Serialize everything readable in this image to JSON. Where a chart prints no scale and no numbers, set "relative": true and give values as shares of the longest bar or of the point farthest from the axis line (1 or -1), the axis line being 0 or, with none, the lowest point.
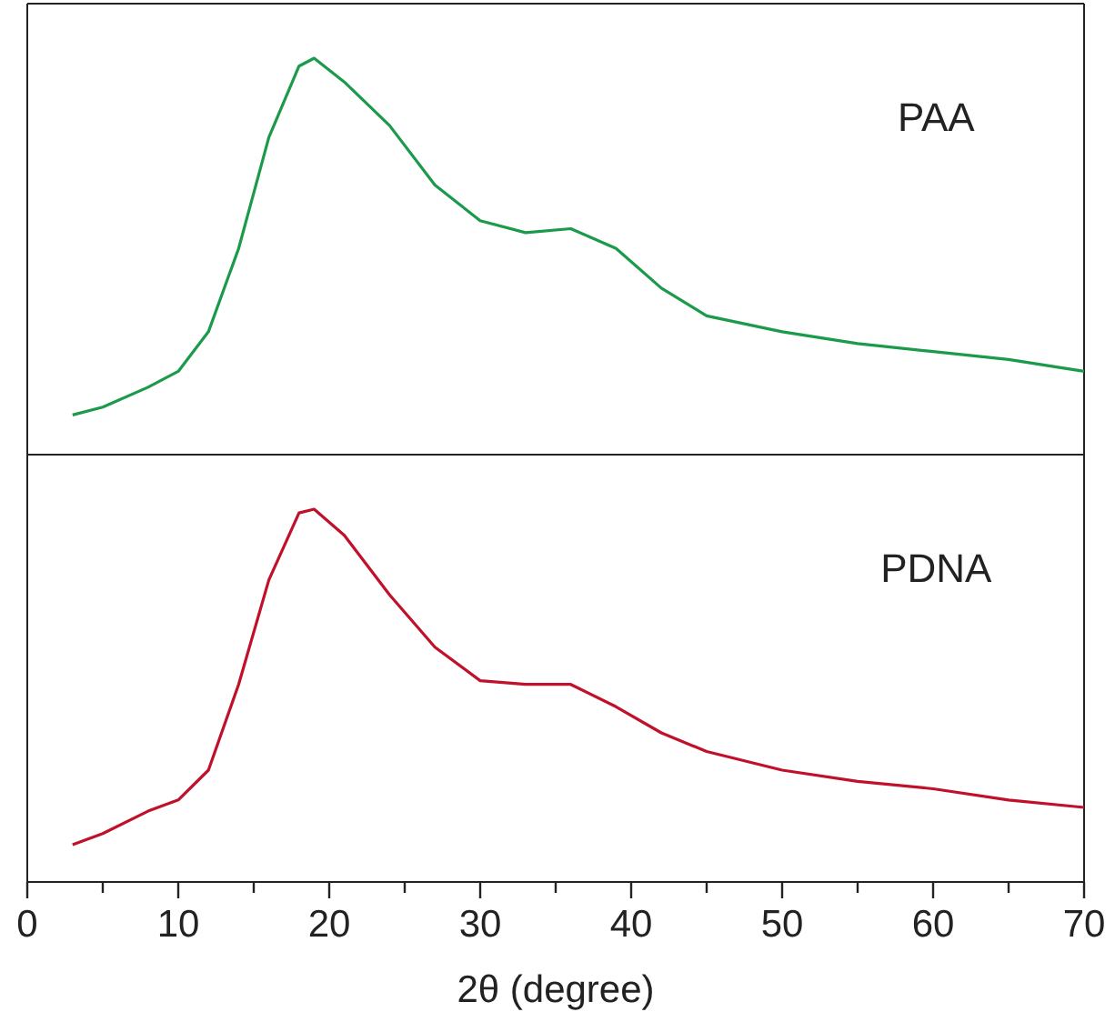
{
  "chart_data": [
    {
      "type": "line",
      "relative": true,
      "xlim": [
        0,
        70
      ],
      "tick_labels": false,
      "x": [
        3,
        5,
        8,
        10,
        12,
        14,
        16,
        18,
        19,
        21,
        24,
        27,
        30,
        33,
        36,
        39,
        42,
        45,
        50,
        55,
        60,
        65,
        70
      ],
      "series": [
        {
          "name": "PAA",
          "color": "#1a9a4a",
          "values": [
            0.1,
            0.12,
            0.17,
            0.21,
            0.31,
            0.52,
            0.8,
            0.98,
            1,
            0.94,
            0.83,
            0.68,
            0.59,
            0.56,
            0.57,
            0.52,
            0.42,
            0.35,
            0.31,
            0.28,
            0.26,
            0.24,
            0.21
          ]
        }
      ]
    },
    {
      "type": "line",
      "relative": true,
      "xlim": [
        0,
        70
      ],
      "xticks": [
        0,
        {
          "value": 5,
          "label": null
        },
        10,
        {
          "value": 15,
          "label": null
        },
        20,
        {
          "value": 25,
          "label": null
        },
        30,
        {
          "value": 35,
          "label": null
        },
        40,
        {
          "value": 45,
          "label": null
        },
        50,
        {
          "value": 55,
          "label": null
        },
        60,
        {
          "value": 65,
          "label": null
        },
        70
      ],
      "tick_labels": "x",
      "xlabel": "2θ (degree)",
      "x": [
        3,
        5,
        8,
        10,
        12,
        14,
        16,
        18,
        19,
        21,
        24,
        27,
        30,
        33,
        36,
        39,
        42,
        45,
        50,
        55,
        60,
        65,
        70
      ],
      "series": [
        {
          "name": "PDNA",
          "color": "#c0102a",
          "values": [
            0.1,
            0.13,
            0.19,
            0.22,
            0.3,
            0.53,
            0.81,
            0.99,
            1,
            0.93,
            0.77,
            0.63,
            0.54,
            0.53,
            0.53,
            0.47,
            0.4,
            0.35,
            0.3,
            0.27,
            0.25,
            0.22,
            0.2
          ]
        }
      ]
    }
  ]
}
